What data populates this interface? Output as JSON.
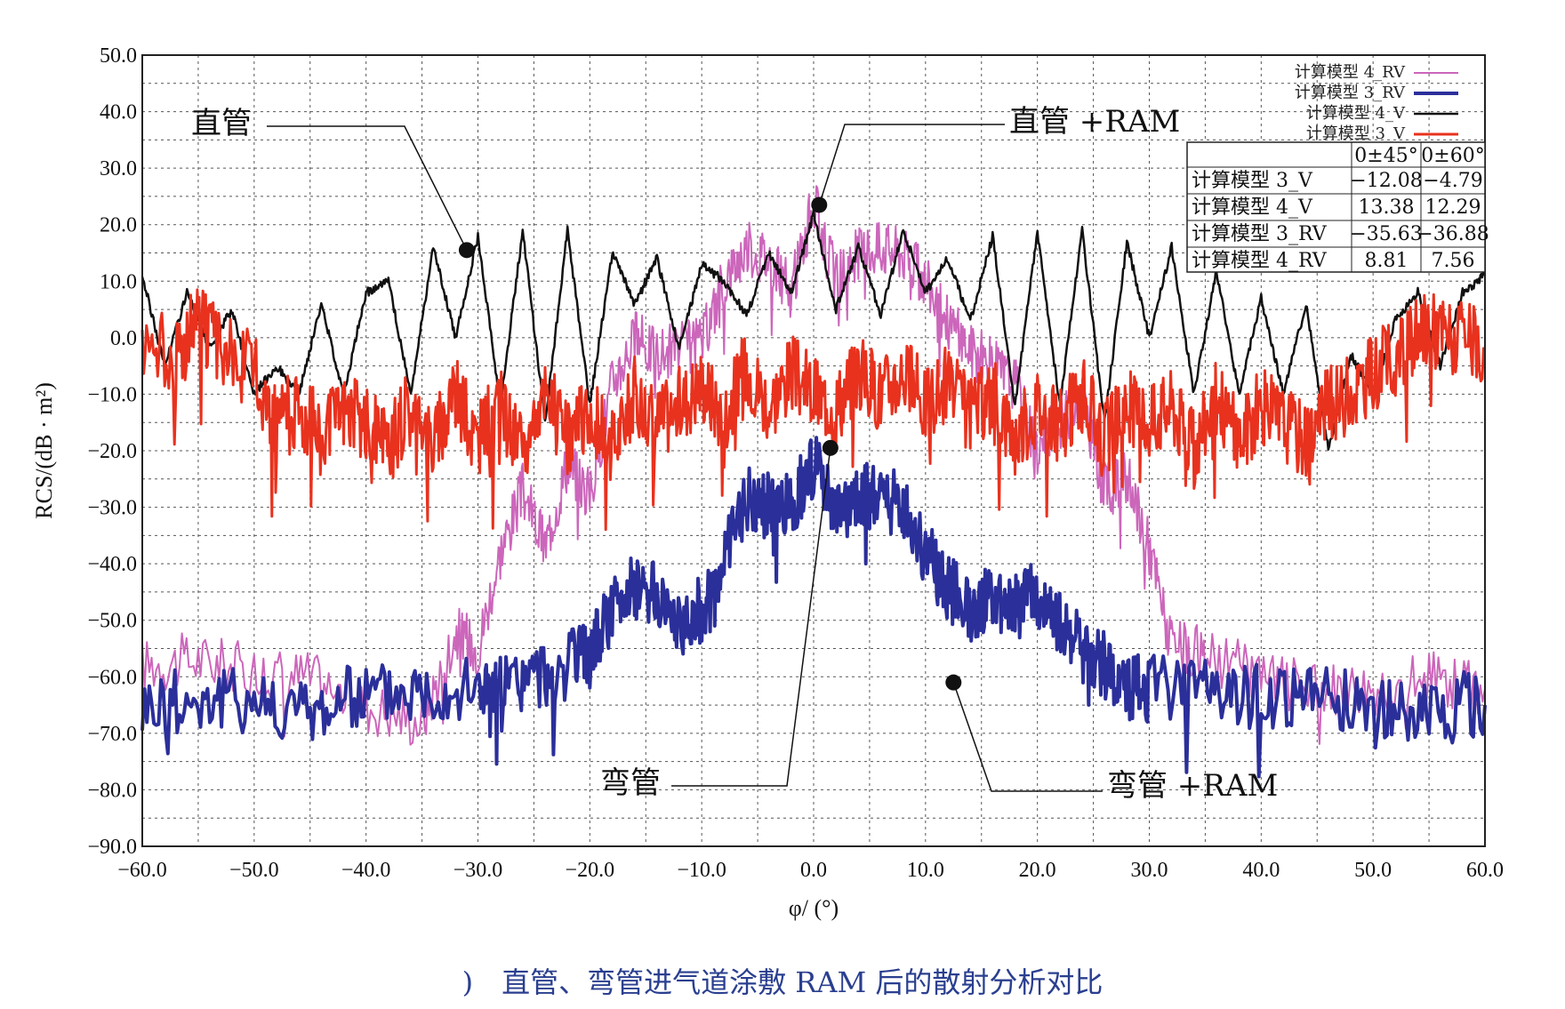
{
  "chart_data": {
    "type": "line",
    "xlabel": "φ/ (°)",
    "ylabel": "RCS/(dB · m²)",
    "xlim": [
      -60,
      60
    ],
    "ylim": [
      -90,
      50
    ],
    "grid": true,
    "legend_position": "top-right",
    "xticks": [
      "−60.0",
      "−50.0",
      "−40.0",
      "−30.0",
      "−20.0",
      "−10.0",
      "0.0",
      "10.0",
      "20.0",
      "30.0",
      "40.0",
      "50.0",
      "60.0"
    ],
    "yticks": [
      "50.0",
      "40.0",
      "30.0",
      "20.0",
      "10.0",
      "0.0",
      "−10.0",
      "−20.0",
      "−30.0",
      "−40.0",
      "−50.0",
      "−60.0",
      "−70.0",
      "−80.0",
      "−90.0"
    ],
    "series": [
      {
        "name": "计算模型 4_RV",
        "color": "#cc66bb",
        "x": [
          -60,
          -55,
          -50,
          -45,
          -40,
          -35,
          -32,
          -30,
          -28,
          -26,
          -24,
          -22,
          -20,
          -18,
          -16,
          -14,
          -12,
          -10,
          -8,
          -6,
          -4,
          -2,
          0,
          2,
          4,
          6,
          8,
          10,
          12,
          14,
          16,
          18,
          20,
          22,
          24,
          26,
          28,
          30,
          32,
          35,
          40,
          45,
          50,
          55,
          60
        ],
        "y": [
          -58,
          -57,
          -59,
          -60,
          -65,
          -68,
          -52,
          -55,
          -38,
          -27,
          -37,
          -22,
          -28,
          -8,
          0,
          -3,
          -2,
          -1,
          10,
          16,
          14,
          8,
          24,
          10,
          15,
          16,
          15,
          10,
          3,
          -2,
          -5,
          -8,
          -20,
          -15,
          -10,
          -27,
          -25,
          -37,
          -55,
          -56,
          -60,
          -62,
          -62,
          -60,
          -62
        ]
      },
      {
        "name": "计算模型 3_RV",
        "color": "#2b2f9a",
        "x": [
          -60,
          -55,
          -50,
          -45,
          -40,
          -35,
          -30,
          -28,
          -25,
          -22,
          -20,
          -18,
          -16,
          -14,
          -12,
          -10,
          -8,
          -6,
          -4,
          -2,
          0,
          2,
          4,
          6,
          8,
          10,
          12,
          14,
          16,
          18,
          20,
          22,
          24,
          26,
          28,
          30,
          35,
          40,
          45,
          50,
          55,
          60
        ],
        "y": [
          -65,
          -64,
          -64,
          -66,
          -63,
          -62,
          -62,
          -62,
          -60,
          -58,
          -56,
          -48,
          -44,
          -46,
          -50,
          -48,
          -40,
          -28,
          -30,
          -30,
          -22,
          -32,
          -28,
          -28,
          -30,
          -38,
          -44,
          -48,
          -46,
          -48,
          -45,
          -50,
          -55,
          -58,
          -62,
          -62,
          -62,
          -64,
          -63,
          -66,
          -65,
          -65
        ]
      },
      {
        "name": "计算模型 4_V",
        "color": "#111111",
        "x": [
          -60,
          -58,
          -56,
          -54,
          -52,
          -50,
          -48,
          -46,
          -44,
          -42,
          -40,
          -38,
          -36,
          -34,
          -32,
          -30,
          -28,
          -26,
          -24,
          -22,
          -20,
          -18,
          -16,
          -14,
          -12,
          -10,
          -8,
          -6,
          -4,
          -2,
          0,
          2,
          4,
          6,
          8,
          10,
          12,
          14,
          16,
          18,
          20,
          22,
          24,
          26,
          28,
          30,
          32,
          34,
          36,
          38,
          40,
          42,
          44,
          46,
          48,
          50,
          52,
          54,
          56,
          58,
          60
        ],
        "y": [
          11,
          -5,
          8,
          -2,
          5,
          -10,
          -5,
          -10,
          6,
          -10,
          8,
          10,
          -10,
          16,
          0,
          18,
          -12,
          19,
          -15,
          19,
          -12,
          15,
          6,
          14,
          -2,
          13,
          10,
          4,
          15,
          8,
          22,
          5,
          16,
          4,
          19,
          8,
          14,
          3,
          18,
          -12,
          19,
          -12,
          19,
          -15,
          17,
          0,
          16,
          -10,
          12,
          -10,
          7,
          -10,
          6,
          -20,
          -3,
          -10,
          3,
          8,
          -5,
          8,
          11
        ]
      },
      {
        "name": "计算模型 3_V",
        "color": "#e8321e",
        "x": [
          -60,
          -57,
          -55,
          -53,
          -50,
          -48,
          -46,
          -44,
          -42,
          -40,
          -38,
          -36,
          -34,
          -32,
          -30,
          -28,
          -26,
          -24,
          -22,
          -20,
          -18,
          -16,
          -14,
          -12,
          -10,
          -8,
          -6,
          -4,
          -2,
          0,
          2,
          4,
          6,
          8,
          10,
          12,
          14,
          16,
          18,
          20,
          22,
          24,
          26,
          28,
          30,
          32,
          34,
          36,
          38,
          40,
          42,
          44,
          46,
          48,
          50,
          53,
          55,
          57,
          60
        ],
        "y": [
          0,
          -3,
          3,
          -2,
          -6,
          -15,
          -12,
          -18,
          -12,
          -15,
          -20,
          -12,
          -18,
          -10,
          -18,
          -12,
          -20,
          -10,
          -18,
          -12,
          -20,
          -10,
          -15,
          -12,
          -8,
          -14,
          -5,
          -12,
          -6,
          -10,
          -12,
          -6,
          -10,
          -6,
          -12,
          -8,
          -14,
          -10,
          -18,
          -12,
          -16,
          -10,
          -18,
          -12,
          -15,
          -12,
          -20,
          -10,
          -18,
          -12,
          -15,
          -18,
          -12,
          -10,
          -6,
          -2,
          2,
          0,
          -2
        ]
      }
    ],
    "annotations": [
      {
        "text": "直管",
        "x": -31,
        "y": 15.5
      },
      {
        "text": "直管 +RAM",
        "x": 0.5,
        "y": 23.5
      },
      {
        "text": "弯管",
        "x": 1.5,
        "y": -19.5
      },
      {
        "text": "弯管 +RAM",
        "x": 12.5,
        "y": -61
      }
    ],
    "table": {
      "headers": [
        "",
        "0±45°",
        "0±60°"
      ],
      "rows": [
        [
          "计算模型 3_V",
          "−12.08",
          "−4.79"
        ],
        [
          "计算模型 4_V",
          "13.38",
          "12.29"
        ],
        [
          "计算模型 3_RV",
          "−35.63",
          "−36.88"
        ],
        [
          "计算模型 4_RV",
          "8.81",
          "7.56"
        ]
      ]
    }
  },
  "caption": ")　直管、弯管进气道涂敷 RAM 后的散射分析对比"
}
